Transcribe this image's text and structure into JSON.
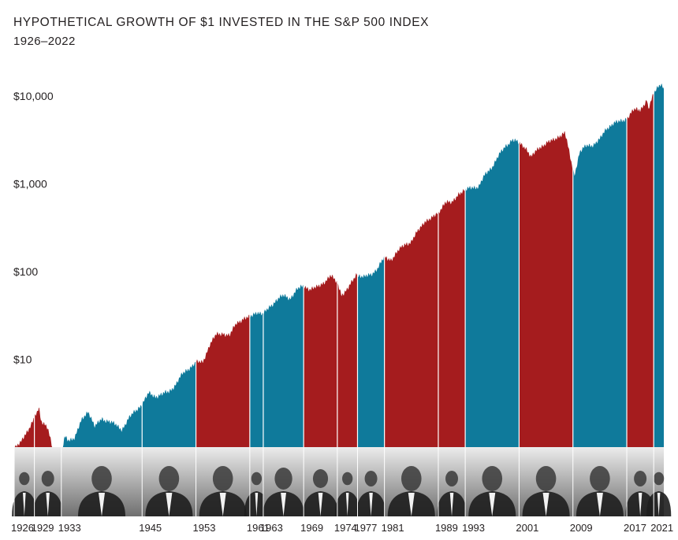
{
  "header": {
    "title": "HYPOTHETICAL GROWTH OF $1 INVESTED IN THE S&P 500 INDEX",
    "subtitle": "1926–2022"
  },
  "colors": {
    "republican": "#a51c1e",
    "democrat": "#0f7a9b",
    "photo_band_light": "#ececec",
    "photo_band_dark": "#6f6f6f"
  },
  "chart_data": {
    "type": "area",
    "title": "HYPOTHETICAL GROWTH OF $1 INVESTED IN THE S&P 500 INDEX",
    "subtitle": "1926–2022",
    "xlabel": "",
    "ylabel": "",
    "yscale": "log",
    "xlim": [
      1926,
      2022.5
    ],
    "ylim": [
      1,
      15000
    ],
    "yticks": [
      10,
      100,
      1000,
      10000
    ],
    "ytick_labels": [
      "$10",
      "$100",
      "$1,000",
      "$10,000"
    ],
    "grid": false,
    "growth_points": [
      [
        1926.0,
        1.0
      ],
      [
        1927.0,
        1.12
      ],
      [
        1928.0,
        1.54
      ],
      [
        1929.0,
        2.2
      ],
      [
        1929.67,
        2.9
      ],
      [
        1930.0,
        2.0
      ],
      [
        1931.0,
        1.6
      ],
      [
        1932.0,
        0.8
      ],
      [
        1932.5,
        0.5
      ],
      [
        1933.0,
        0.75
      ],
      [
        1933.5,
        1.3
      ],
      [
        1934.0,
        1.2
      ],
      [
        1935.0,
        1.3
      ],
      [
        1936.0,
        2.0
      ],
      [
        1937.0,
        2.6
      ],
      [
        1938.0,
        1.7
      ],
      [
        1939.0,
        2.1
      ],
      [
        1940.0,
        2.0
      ],
      [
        1941.0,
        1.8
      ],
      [
        1942.0,
        1.6
      ],
      [
        1943.0,
        2.1
      ],
      [
        1944.0,
        2.6
      ],
      [
        1945.0,
        3.1
      ],
      [
        1946.0,
        4.1
      ],
      [
        1947.0,
        3.8
      ],
      [
        1948.0,
        4.0
      ],
      [
        1949.0,
        4.3
      ],
      [
        1950.0,
        5.2
      ],
      [
        1951.0,
        6.8
      ],
      [
        1952.0,
        8.0
      ],
      [
        1953.0,
        9.2
      ],
      [
        1954.0,
        9.3
      ],
      [
        1955.0,
        14.5
      ],
      [
        1956.0,
        19.0
      ],
      [
        1957.0,
        20.0
      ],
      [
        1958.0,
        18.5
      ],
      [
        1959.0,
        26.0
      ],
      [
        1960.0,
        29.0
      ],
      [
        1961.0,
        30.0
      ],
      [
        1962.0,
        35.0
      ],
      [
        1963.0,
        32.5
      ],
      [
        1964.0,
        40.0
      ],
      [
        1965.0,
        48.0
      ],
      [
        1966.0,
        53.0
      ],
      [
        1967.0,
        50.0
      ],
      [
        1968.0,
        62.0
      ],
      [
        1969.0,
        69.0
      ],
      [
        1970.0,
        63.0
      ],
      [
        1971.0,
        66.0
      ],
      [
        1972.0,
        76.0
      ],
      [
        1973.0,
        89.0
      ],
      [
        1974.0,
        75.0
      ],
      [
        1974.6,
        52.0
      ],
      [
        1975.0,
        56.0
      ],
      [
        1976.0,
        76.0
      ],
      [
        1977.0,
        92.0
      ],
      [
        1978.0,
        86.0
      ],
      [
        1979.0,
        93.0
      ],
      [
        1980.0,
        110.0
      ],
      [
        1981.0,
        145.0
      ],
      [
        1982.0,
        138.0
      ],
      [
        1983.0,
        170.0
      ],
      [
        1984.0,
        205.0
      ],
      [
        1985.0,
        220.0
      ],
      [
        1986.0,
        290.0
      ],
      [
        1987.0,
        380.0
      ],
      [
        1988.0,
        400.0
      ],
      [
        1989.0,
        470.0
      ],
      [
        1990.0,
        620.0
      ],
      [
        1991.0,
        600.0
      ],
      [
        1992.0,
        780.0
      ],
      [
        1993.0,
        840.0
      ],
      [
        1994.0,
        920.0
      ],
      [
        1995.0,
        930.0
      ],
      [
        1996.0,
        1280.0
      ],
      [
        1997.0,
        1580.0
      ],
      [
        1998.0,
        2100.0
      ],
      [
        1999.0,
        2700.0
      ],
      [
        2000.0,
        3200.0
      ],
      [
        2001.0,
        2900.0
      ],
      [
        2002.0,
        2600.0
      ],
      [
        2002.8,
        2000.0
      ],
      [
        2003.0,
        2100.0
      ],
      [
        2004.0,
        2600.0
      ],
      [
        2005.0,
        2900.0
      ],
      [
        2006.0,
        3100.0
      ],
      [
        2007.0,
        3550.0
      ],
      [
        2007.8,
        3800.0
      ],
      [
        2008.0,
        3300.0
      ],
      [
        2008.8,
        1700.0
      ],
      [
        2009.0,
        1500.0
      ],
      [
        2009.2,
        1250.0
      ],
      [
        2010.0,
        2300.0
      ],
      [
        2011.0,
        2700.0
      ],
      [
        2012.0,
        2800.0
      ],
      [
        2013.0,
        3200.0
      ],
      [
        2014.0,
        4300.0
      ],
      [
        2015.0,
        4900.0
      ],
      [
        2016.0,
        5100.0
      ],
      [
        2017.0,
        5600.0
      ],
      [
        2018.0,
        6900.0
      ],
      [
        2019.0,
        7000.0
      ],
      [
        2020.0,
        9100.0
      ],
      [
        2020.2,
        7000.0
      ],
      [
        2021.0,
        10600.0
      ],
      [
        2021.5,
        12500.0
      ],
      [
        2022.0,
        14000.0
      ],
      [
        2022.2,
        13500.0
      ],
      [
        2022.5,
        12000.0
      ]
    ],
    "terms": [
      {
        "start": 1926.0,
        "end": 1929.0,
        "party": "republican",
        "label": "1926"
      },
      {
        "start": 1929.0,
        "end": 1933.0,
        "party": "republican",
        "label": "1929"
      },
      {
        "start": 1933.0,
        "end": 1945.0,
        "party": "democrat",
        "label": "1933"
      },
      {
        "start": 1945.0,
        "end": 1953.0,
        "party": "democrat",
        "label": "1945"
      },
      {
        "start": 1953.0,
        "end": 1961.0,
        "party": "republican",
        "label": "1953"
      },
      {
        "start": 1961.0,
        "end": 1963.0,
        "party": "democrat",
        "label": "1961"
      },
      {
        "start": 1963.0,
        "end": 1969.0,
        "party": "democrat",
        "label": "1963"
      },
      {
        "start": 1969.0,
        "end": 1974.0,
        "party": "republican",
        "label": "1969"
      },
      {
        "start": 1974.0,
        "end": 1977.0,
        "party": "republican",
        "label": "1974"
      },
      {
        "start": 1977.0,
        "end": 1981.0,
        "party": "democrat",
        "label": "1977"
      },
      {
        "start": 1981.0,
        "end": 1989.0,
        "party": "republican",
        "label": "1981"
      },
      {
        "start": 1989.0,
        "end": 1993.0,
        "party": "republican",
        "label": "1989"
      },
      {
        "start": 1993.0,
        "end": 2001.0,
        "party": "democrat",
        "label": "1993"
      },
      {
        "start": 2001.0,
        "end": 2009.0,
        "party": "republican",
        "label": "2001"
      },
      {
        "start": 2009.0,
        "end": 2017.0,
        "party": "democrat",
        "label": "2009"
      },
      {
        "start": 2017.0,
        "end": 2021.0,
        "party": "republican",
        "label": "2017"
      },
      {
        "start": 2021.0,
        "end": 2022.5,
        "party": "democrat",
        "label": "2021"
      }
    ]
  }
}
